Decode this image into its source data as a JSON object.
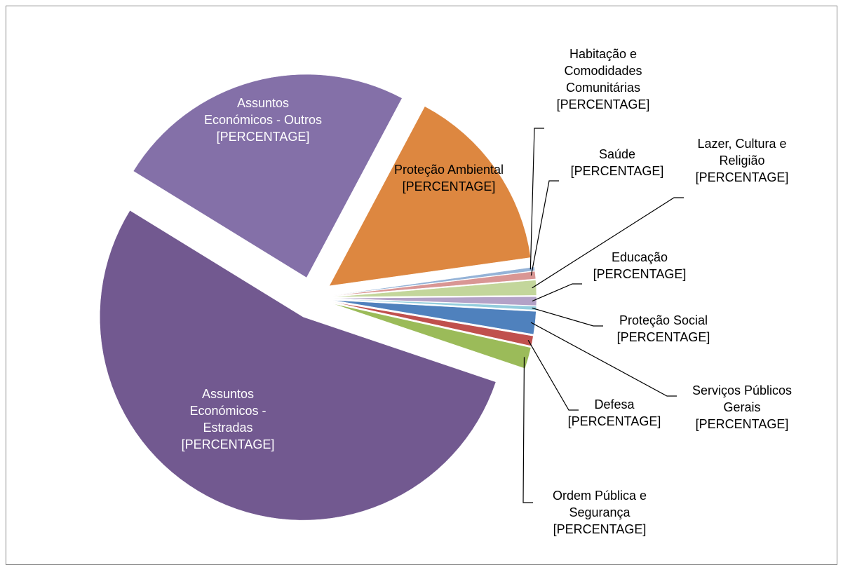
{
  "chart_data": {
    "type": "pie",
    "categories": [
      "Habitação e Comodidades Comunitárias",
      "Saúde",
      "Lazer, Cultura e Religião",
      "Educação",
      "Proteção Social",
      "Serviços Públicos Gerais",
      "Defesa",
      "Ordem Pública e Segurança",
      "Assuntos Económicos - Estradas",
      "Assuntos Económicos - Outros",
      "Proteção Ambiental"
    ],
    "values": [
      0.3,
      0.6,
      1.2,
      0.7,
      0.3,
      1.8,
      0.8,
      1.7,
      53.6,
      24,
      15
    ],
    "value_labels": [
      "[PERCENTAGE]",
      "[PERCENTAGE]",
      "[PERCENTAGE]",
      "[PERCENTAGE]",
      "[PERCENTAGE]",
      "[PERCENTAGE]",
      "[PERCENTAGE]",
      "[PERCENTAGE]",
      "[PERCENTAGE]",
      "[PERCENTAGE]",
      "[PERCENTAGE]"
    ],
    "colors": [
      "#95b3d7",
      "#d99694",
      "#c3d69b",
      "#b3a2c7",
      "#93cddd",
      "#4f81bd",
      "#c0504d",
      "#9bbb59",
      "#725990",
      "#8470a8",
      "#dd8740"
    ]
  }
}
